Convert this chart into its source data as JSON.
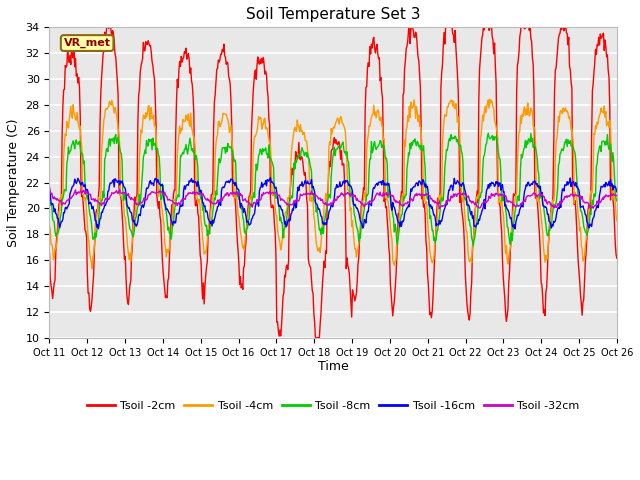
{
  "title": "Soil Temperature Set 3",
  "xlabel": "Time",
  "ylabel": "Soil Temperature (C)",
  "ylim": [
    10,
    34
  ],
  "yticks": [
    10,
    12,
    14,
    16,
    18,
    20,
    22,
    24,
    26,
    28,
    30,
    32,
    34
  ],
  "xtick_labels": [
    "Oct 11",
    "Oct 12",
    "Oct 13",
    "Oct 14",
    "Oct 15",
    "Oct 16",
    "Oct 17",
    "Oct 18",
    "Oct 19",
    "Oct 20",
    "Oct 21",
    "Oct 22",
    "Oct 23",
    "Oct 24",
    "Oct 25",
    "Oct 26"
  ],
  "series": [
    {
      "label": "Tsoil -2cm",
      "color": "#FF0000"
    },
    {
      "label": "Tsoil -4cm",
      "color": "#FF9900"
    },
    {
      "label": "Tsoil -8cm",
      "color": "#00CC00"
    },
    {
      "label": "Tsoil -16cm",
      "color": "#0000FF"
    },
    {
      "label": "Tsoil -32cm",
      "color": "#CC00CC"
    }
  ],
  "annotation_text": "VR_met",
  "bg_color": "#E8E8E8",
  "fig_bg_color": "#FFFFFF",
  "n_days": 15,
  "pts_per_day": 48
}
